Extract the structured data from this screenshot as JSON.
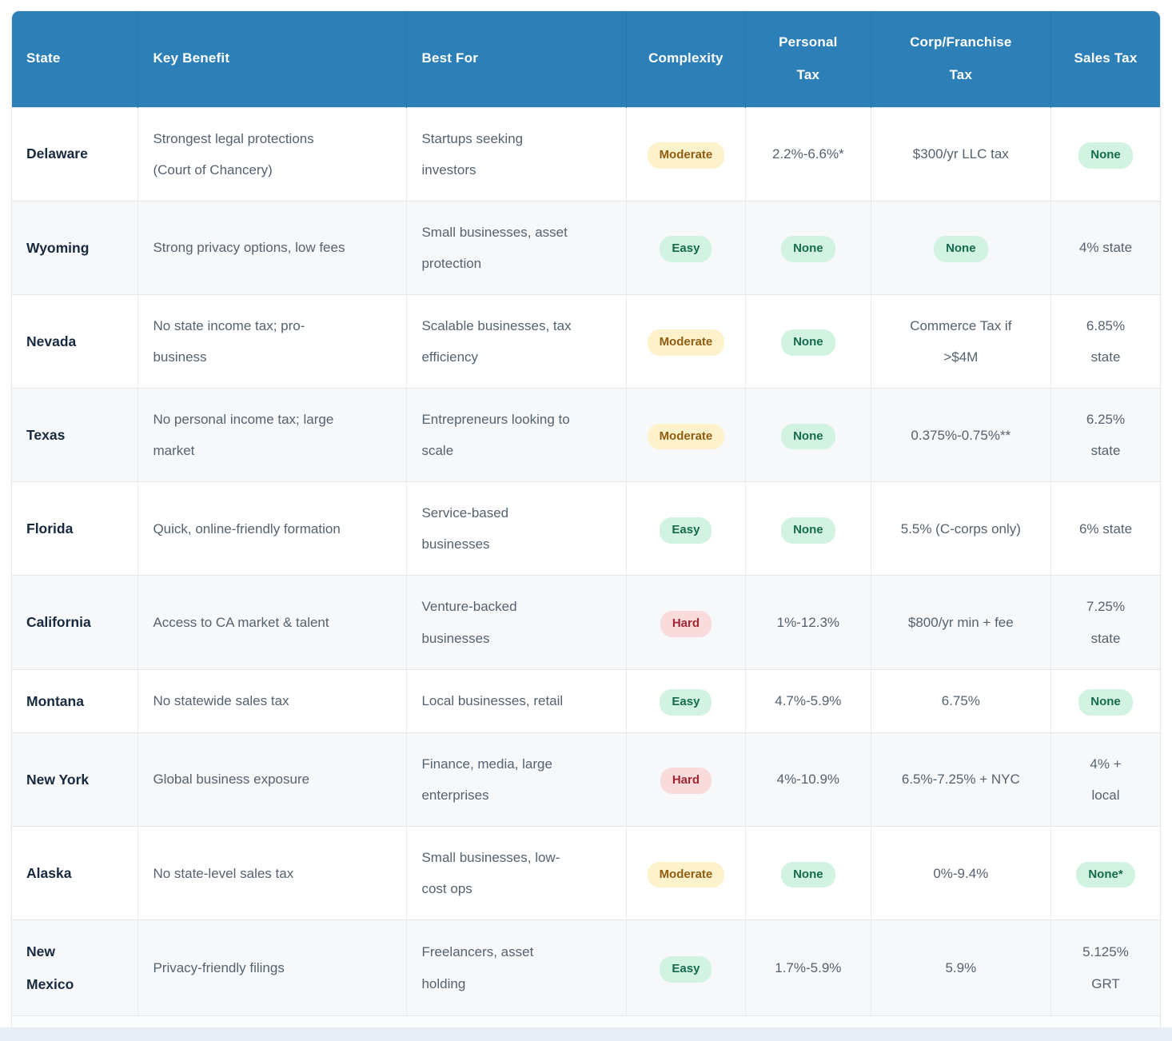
{
  "colors": {
    "header_bg": "#2d7fb8",
    "header_text": "#ffffff",
    "state_text": "#17293e",
    "body_text": "#55626f",
    "row_alt_bg": "#f7f8fa",
    "badge_yellow_bg": "#fdf2cb",
    "badge_yellow_text": "#8f5c12",
    "badge_green_bg": "#d2f3e2",
    "badge_green_text": "#156a50",
    "badge_red_bg": "#fadbdc",
    "badge_red_text": "#a32733",
    "bottom_strip": "#e9eef6"
  },
  "table": {
    "columns": [
      {
        "label": "State",
        "label_display": "State",
        "align": "left",
        "width": "11%"
      },
      {
        "label": "Key Benefit",
        "label_display": "Key Benefit",
        "align": "left",
        "width": "23.4%"
      },
      {
        "label": "Best For",
        "label_display": "Best For",
        "align": "left",
        "width": "19.1%"
      },
      {
        "label": "Complexity",
        "label_display": "Complexity",
        "align": "center",
        "width": "10.4%"
      },
      {
        "label": "Personal Tax",
        "label_display": "Personal\nTax",
        "align": "center",
        "width": "10.9%"
      },
      {
        "label": "Corp/Franchise Tax",
        "label_display": "Corp/Franchise\nTax",
        "align": "center",
        "width": "15.7%"
      },
      {
        "label": "Sales Tax",
        "label_display": "Sales Tax",
        "align": "center",
        "width": "9.5%"
      }
    ],
    "rows": [
      {
        "state": "Delaware",
        "key_benefit": {
          "text": "Strongest legal protections\n(Court of Chancery)",
          "badge": null
        },
        "best_for": {
          "text": "Startups seeking\ninvestors",
          "badge": null
        },
        "complexity": {
          "text": "Moderate",
          "badge": "yellow"
        },
        "personal_tax": {
          "text": "2.2%-6.6%*",
          "badge": null
        },
        "corp_franchise_tax": {
          "text": "$300/yr LLC tax",
          "badge": null
        },
        "sales_tax": {
          "text": "None",
          "badge": "green"
        }
      },
      {
        "state": "Wyoming",
        "key_benefit": {
          "text": "Strong privacy options, low fees",
          "badge": null
        },
        "best_for": {
          "text": "Small businesses, asset\nprotection",
          "badge": null
        },
        "complexity": {
          "text": "Easy",
          "badge": "green"
        },
        "personal_tax": {
          "text": "None",
          "badge": "green"
        },
        "corp_franchise_tax": {
          "text": "None",
          "badge": "green"
        },
        "sales_tax": {
          "text": "4% state",
          "badge": null
        }
      },
      {
        "state": "Nevada",
        "key_benefit": {
          "text": "No state income tax; pro-\nbusiness",
          "badge": null
        },
        "best_for": {
          "text": "Scalable businesses, tax\nefficiency",
          "badge": null
        },
        "complexity": {
          "text": "Moderate",
          "badge": "yellow"
        },
        "personal_tax": {
          "text": "None",
          "badge": "green"
        },
        "corp_franchise_tax": {
          "text": "Commerce Tax if\n>$4M",
          "badge": null
        },
        "sales_tax": {
          "text": "6.85%\nstate",
          "badge": null
        }
      },
      {
        "state": "Texas",
        "key_benefit": {
          "text": "No personal income tax; large\nmarket",
          "badge": null
        },
        "best_for": {
          "text": "Entrepreneurs looking to\nscale",
          "badge": null
        },
        "complexity": {
          "text": "Moderate",
          "badge": "yellow"
        },
        "personal_tax": {
          "text": "None",
          "badge": "green"
        },
        "corp_franchise_tax": {
          "text": "0.375%-0.75%**",
          "badge": null
        },
        "sales_tax": {
          "text": "6.25%\nstate",
          "badge": null
        }
      },
      {
        "state": "Florida",
        "key_benefit": {
          "text": "Quick, online-friendly formation",
          "badge": null
        },
        "best_for": {
          "text": "Service-based\nbusinesses",
          "badge": null
        },
        "complexity": {
          "text": "Easy",
          "badge": "green"
        },
        "personal_tax": {
          "text": "None",
          "badge": "green"
        },
        "corp_franchise_tax": {
          "text": "5.5% (C-corps only)",
          "badge": null
        },
        "sales_tax": {
          "text": "6% state",
          "badge": null
        }
      },
      {
        "state": "California",
        "key_benefit": {
          "text": "Access to CA market & talent",
          "badge": null
        },
        "best_for": {
          "text": "Venture-backed\nbusinesses",
          "badge": null
        },
        "complexity": {
          "text": "Hard",
          "badge": "red"
        },
        "personal_tax": {
          "text": "1%-12.3%",
          "badge": null
        },
        "corp_franchise_tax": {
          "text": "$800/yr min + fee",
          "badge": null
        },
        "sales_tax": {
          "text": "7.25%\nstate",
          "badge": null
        }
      },
      {
        "state": "Montana",
        "key_benefit": {
          "text": "No statewide sales tax",
          "badge": null
        },
        "best_for": {
          "text": "Local businesses, retail",
          "badge": null
        },
        "complexity": {
          "text": "Easy",
          "badge": "green"
        },
        "personal_tax": {
          "text": "4.7%-5.9%",
          "badge": null
        },
        "corp_franchise_tax": {
          "text": "6.75%",
          "badge": null
        },
        "sales_tax": {
          "text": "None",
          "badge": "green"
        }
      },
      {
        "state": "New York",
        "key_benefit": {
          "text": "Global business exposure",
          "badge": null
        },
        "best_for": {
          "text": "Finance, media, large\nenterprises",
          "badge": null
        },
        "complexity": {
          "text": "Hard",
          "badge": "red"
        },
        "personal_tax": {
          "text": "4%-10.9%",
          "badge": null
        },
        "corp_franchise_tax": {
          "text": "6.5%-7.25% + NYC",
          "badge": null
        },
        "sales_tax": {
          "text": "4% +\nlocal",
          "badge": null
        }
      },
      {
        "state": "Alaska",
        "key_benefit": {
          "text": "No state-level sales tax",
          "badge": null
        },
        "best_for": {
          "text": "Small businesses, low-\ncost ops",
          "badge": null
        },
        "complexity": {
          "text": "Moderate",
          "badge": "yellow"
        },
        "personal_tax": {
          "text": "None",
          "badge": "green"
        },
        "corp_franchise_tax": {
          "text": "0%-9.4%",
          "badge": null
        },
        "sales_tax": {
          "text": "None*",
          "badge": "green"
        }
      },
      {
        "state": "New\nMexico",
        "key_benefit": {
          "text": "Privacy-friendly filings",
          "badge": null
        },
        "best_for": {
          "text": "Freelancers, asset\nholding",
          "badge": null
        },
        "complexity": {
          "text": "Easy",
          "badge": "green"
        },
        "personal_tax": {
          "text": "1.7%-5.9%",
          "badge": null
        },
        "corp_franchise_tax": {
          "text": "5.9%",
          "badge": null
        },
        "sales_tax": {
          "text": "5.125%\nGRT",
          "badge": null
        }
      }
    ]
  }
}
